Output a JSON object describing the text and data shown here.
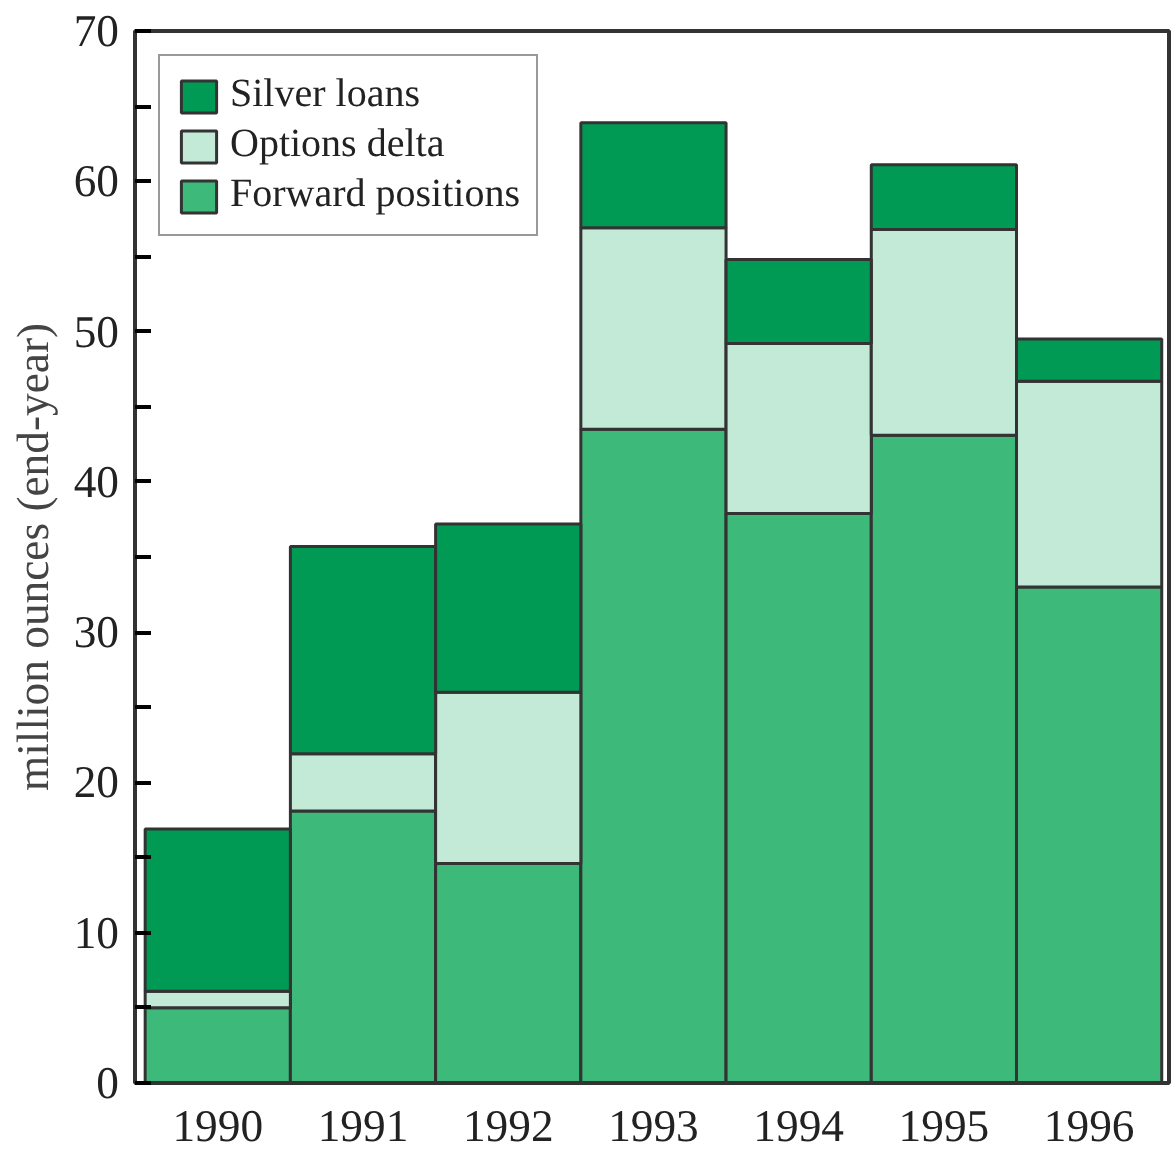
{
  "chart_data": {
    "type": "bar",
    "stacked": true,
    "ylabel": "million ounces (end-year)",
    "categories": [
      "1990",
      "1991",
      "1992",
      "1993",
      "1994",
      "1995",
      "1996"
    ],
    "series": [
      {
        "name": "Forward positions",
        "color": "#3dba7a",
        "values": [
          5.0,
          18.1,
          14.6,
          43.5,
          37.9,
          43.1,
          33.0
        ]
      },
      {
        "name": "Options delta",
        "color": "#c3ead6",
        "values": [
          1.1,
          3.8,
          11.4,
          13.4,
          11.3,
          13.7,
          13.7
        ]
      },
      {
        "name": "Silver loans",
        "color": "#009a55",
        "values": [
          10.8,
          13.8,
          11.2,
          7.0,
          5.6,
          4.3,
          2.8
        ]
      }
    ],
    "ylim": [
      0,
      70
    ],
    "yticks": [
      0,
      {
        "value": 5,
        "label": null
      },
      10,
      {
        "value": 15,
        "label": null
      },
      20,
      {
        "value": 25,
        "label": null
      },
      30,
      {
        "value": 35,
        "label": null
      },
      40,
      {
        "value": 45,
        "label": null
      },
      50,
      {
        "value": 55,
        "label": null
      },
      60,
      {
        "value": 65,
        "label": null
      },
      70
    ],
    "legend": "top left",
    "grid": false
  }
}
